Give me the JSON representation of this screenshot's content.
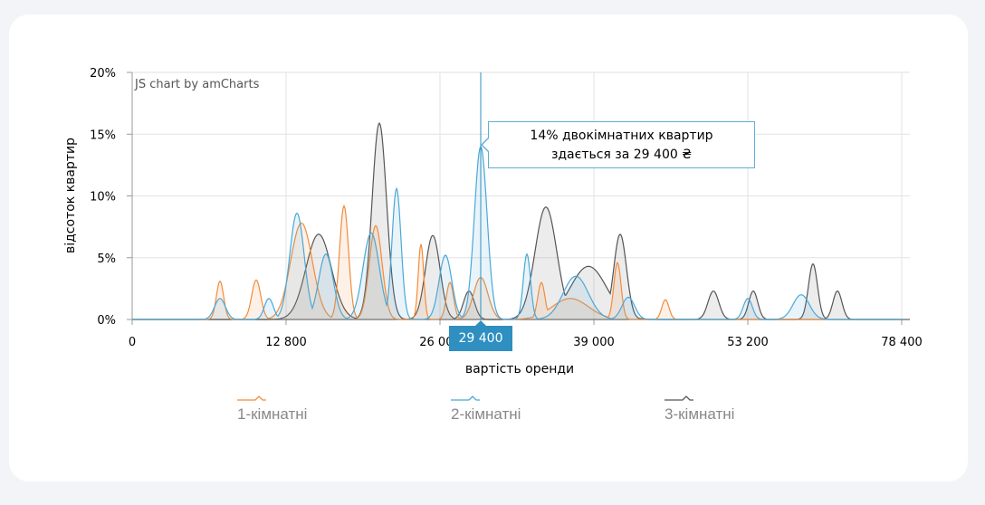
{
  "chart_data": {
    "type": "area",
    "title": "",
    "xlabel": "вартість оренди",
    "ylabel": "відсоток квартир",
    "ylim": [
      0,
      20
    ],
    "y_ticks": [
      "0%",
      "5%",
      "10%",
      "15%",
      "20%"
    ],
    "x_ticks": [
      "0",
      "12 800",
      "26 000",
      "39 000",
      "53 200",
      "78 400"
    ],
    "grid": true,
    "legend_position": "bottom",
    "cursor": {
      "x_label": "29 400",
      "tooltip_line1": "14% двокімнатних квартир",
      "tooltip_line2": "здається за 29 400 ₴"
    },
    "series": [
      {
        "name": "1-кімнатні",
        "color": "#f28c3c",
        "fill": "rgba(242,140,60,0.12)",
        "peaks": [
          [
            243,
            3.1,
            4
          ],
          [
            283,
            3.2,
            5
          ],
          [
            333,
            7.8,
            12
          ],
          [
            380,
            9.2,
            5
          ],
          [
            415,
            7.6,
            7
          ],
          [
            465,
            6.1,
            3
          ],
          [
            497,
            3.0,
            4
          ],
          [
            531,
            3.4,
            8
          ],
          [
            598,
            3.0,
            4
          ],
          [
            630,
            1.7,
            20
          ],
          [
            682,
            4.6,
            4
          ],
          [
            735,
            1.6,
            4
          ]
        ]
      },
      {
        "name": "2-кімнатні",
        "color": "#4aa8d8",
        "fill": "rgba(74,168,216,0.12)",
        "peaks": [
          [
            243,
            1.7,
            6
          ],
          [
            297,
            1.7,
            5
          ],
          [
            328,
            8.6,
            8
          ],
          [
            360,
            5.3,
            8
          ],
          [
            410,
            7.0,
            9
          ],
          [
            438,
            10.6,
            5
          ],
          [
            492,
            5.2,
            7
          ],
          [
            531,
            14.0,
            7
          ],
          [
            582,
            5.3,
            4
          ],
          [
            636,
            3.5,
            14
          ],
          [
            694,
            1.8,
            7
          ],
          [
            826,
            1.7,
            5
          ],
          [
            885,
            2.0,
            9
          ]
        ]
      },
      {
        "name": "3-кімнатні",
        "color": "#555555",
        "fill": "rgba(170,170,170,0.22)",
        "peaks": [
          [
            352,
            6.9,
            14
          ],
          [
            419,
            15.9,
            8
          ],
          [
            478,
            6.8,
            8
          ],
          [
            518,
            2.3,
            6
          ],
          [
            603,
            9.1,
            12
          ],
          [
            650,
            4.3,
            20
          ],
          [
            685,
            6.9,
            7
          ],
          [
            788,
            2.3,
            6
          ],
          [
            832,
            2.3,
            5
          ],
          [
            898,
            4.5,
            5
          ],
          [
            925,
            2.3,
            5
          ]
        ]
      }
    ]
  },
  "credit": "JS chart by amCharts",
  "legend": [
    {
      "label": "1-кімнатні"
    },
    {
      "label": "2-кімнатні"
    },
    {
      "label": "3-кімнатні"
    }
  ]
}
